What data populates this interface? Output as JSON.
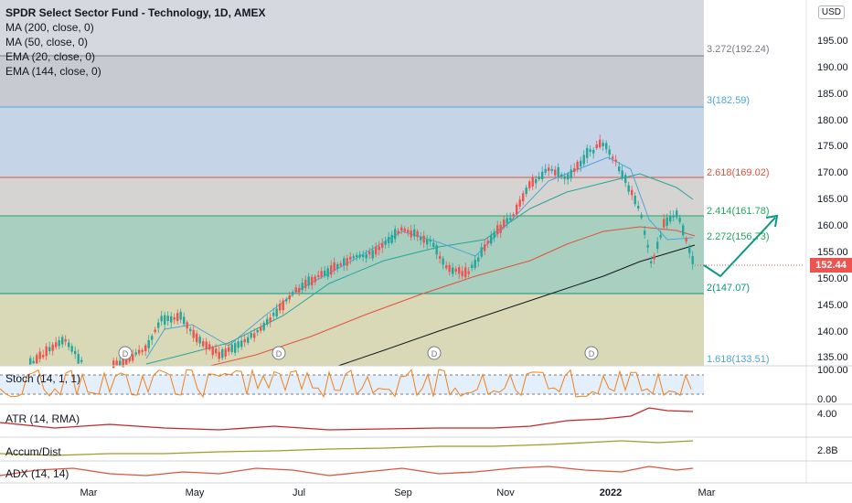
{
  "header": {
    "title": "SPDR Select Sector Fund - Technology, 1D, AMEX",
    "indicators": [
      "MA (200, close, 0)",
      "MA (50, close, 0)",
      "EMA (20, close, 0)",
      "EMA (144, close, 0)"
    ]
  },
  "currency": "USD",
  "last_price": "152.44",
  "price_axis": [
    "195.00",
    "190.00",
    "185.00",
    "180.00",
    "175.00",
    "170.00",
    "165.00",
    "160.00",
    "155.00",
    "150.00",
    "145.00",
    "140.00",
    "135.00"
  ],
  "fib_levels": [
    {
      "label": "3.272(192.24)",
      "value": 192.24,
      "color": "#787b86"
    },
    {
      "label": "3(182.59)",
      "value": 182.59,
      "color": "#4da6d9"
    },
    {
      "label": "2.618(169.02)",
      "value": 169.02,
      "color": "#e0533c"
    },
    {
      "label": "2.414(161.78)",
      "value": 161.78,
      "color": "#22a85a"
    },
    {
      "label": "2.272(156.73)",
      "value": 156.73,
      "color": "#22a85a"
    },
    {
      "label": "2(147.07)",
      "value": 147.07,
      "color": "#089981"
    },
    {
      "label": "1.618(133.51)",
      "value": 133.51,
      "color": "#4da6d9"
    }
  ],
  "dividend_marker": "D",
  "panes": {
    "stoch": {
      "label": "Stoch (14, 1, 1)",
      "axis": [
        "100.00",
        "0.00"
      ]
    },
    "atr": {
      "label": "ATR (14, RMA)",
      "axis": [
        "4.00"
      ]
    },
    "accum": {
      "label": "Accum/Dist",
      "axis": [
        "2.8B"
      ]
    },
    "adx": {
      "label": "ADX (14, 14)",
      "axis": []
    }
  },
  "time_axis": [
    "Mar",
    "May",
    "Jul",
    "Sep",
    "Nov",
    "2022",
    "Mar"
  ],
  "colors": {
    "up": "#26a69a",
    "down": "#ef5350",
    "ma200": "#131722",
    "ma50": "#26a69a",
    "ema20": "#4da6d9",
    "ema144": "#e0533c",
    "arrow": "#089981"
  }
}
